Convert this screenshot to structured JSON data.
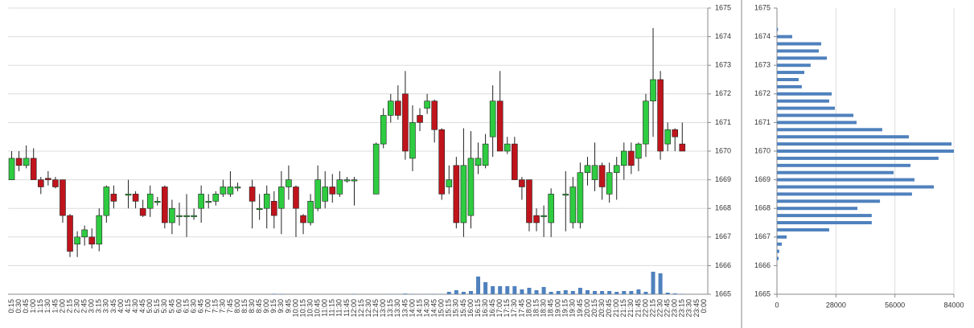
{
  "chart_data": [
    {
      "type": "candlestick",
      "categories": [
        "0:15",
        "0:30",
        "0:45",
        "1:00",
        "1:15",
        "1:30",
        "1:45",
        "2:00",
        "2:15",
        "2:30",
        "2:45",
        "3:00",
        "3:15",
        "3:30",
        "3:45",
        "4:00",
        "4:15",
        "4:30",
        "4:45",
        "5:00",
        "5:15",
        "5:30",
        "5:45",
        "6:00",
        "6:15",
        "6:30",
        "6:45",
        "7:00",
        "7:15",
        "7:30",
        "7:45",
        "8:00",
        "8:15",
        "8:30",
        "8:45",
        "9:00",
        "9:15",
        "9:30",
        "9:45",
        "10:00",
        "10:15",
        "10:30",
        "10:45",
        "11:00",
        "11:15",
        "11:30",
        "11:45",
        "12:00",
        "12:15",
        "12:30",
        "12:45",
        "13:00",
        "13:15",
        "13:30",
        "13:45",
        "14:00",
        "14:15",
        "14:30",
        "14:45",
        "15:00",
        "15:15",
        "15:30",
        "15:45",
        "16:00",
        "16:15",
        "16:30",
        "16:45",
        "17:00",
        "17:15",
        "17:30",
        "17:45",
        "18:00",
        "18:15",
        "18:30",
        "18:45",
        "19:00",
        "19:15",
        "19:30",
        "19:45",
        "20:00",
        "20:15",
        "20:30",
        "20:45",
        "21:00",
        "21:15",
        "21:30",
        "21:45",
        "22:00",
        "22:15",
        "22:30",
        "22:45",
        "23:00",
        "23:15",
        "23:30",
        "23:45",
        "0:00"
      ],
      "open": [
        1669,
        1669.75,
        1669.5,
        1669.75,
        1669,
        1669.05,
        1669,
        1669,
        1667.75,
        1666.75,
        1667,
        1667,
        1666.75,
        1667.75,
        1668.5,
        null,
        1668.5,
        1668.5,
        1668,
        1668,
        1668.25,
        1668.75,
        1667.5,
        1667.75,
        1667.75,
        1667.75,
        1668,
        1668.25,
        1668.25,
        1668.5,
        1668.5,
        1668.75,
        null,
        1668.75,
        1668,
        1668,
        1668.25,
        1668,
        1668.75,
        1668.75,
        1667.75,
        1667.5,
        1668,
        1668.25,
        1668.75,
        1668.5,
        1669,
        1669,
        null,
        null,
        1668.5,
        1670.25,
        1671.25,
        1671.75,
        1672,
        1669.75,
        1671.25,
        1671.5,
        1671.75,
        1670.75,
        1668.75,
        1669.5,
        1667.5,
        1667.75,
        1669.5,
        1669.5,
        1670.5,
        1671.75,
        1670,
        1670.25,
        1669,
        1669,
        1667.75,
        1667.75,
        1667.5,
        null,
        1668.5,
        1667.5,
        1667.5,
        1669.25,
        1669,
        1669.5,
        1668.5,
        1669.25,
        1669.5,
        1670,
        1669.75,
        1670.25,
        1671.75,
        1672.5,
        1670.25,
        1670.75,
        1670.25,
        null,
        null,
        null
      ],
      "high": [
        1670,
        1670,
        1670.2,
        1670.1,
        1669.1,
        1669.3,
        1669.1,
        1669,
        1667.8,
        1667.2,
        1667.4,
        1667.3,
        1668,
        1668.8,
        1668.8,
        null,
        1669,
        1668.6,
        1668.3,
        1668.8,
        1668.4,
        1668.8,
        1668.3,
        1668.2,
        1668.5,
        1668,
        1668.8,
        1668.5,
        1668.6,
        1669,
        1669.3,
        1668.9,
        null,
        1669,
        1668.5,
        1668.8,
        1668.6,
        1669.3,
        1669.5,
        1668.8,
        1667.8,
        1668.5,
        1669.5,
        1669.3,
        1669.2,
        1669.3,
        1669.1,
        1669.1,
        null,
        null,
        1670.3,
        1671.5,
        1672,
        1672.3,
        1672.8,
        1671.6,
        1671.5,
        1672,
        1671.8,
        1670.8,
        1669.5,
        1669.8,
        1670.8,
        1670.7,
        1670.3,
        1670.6,
        1672.3,
        1672.8,
        1670.5,
        1670.5,
        1669.1,
        1669,
        1668,
        1668.1,
        1668.7,
        null,
        1669.3,
        1669.1,
        1669.6,
        1669.8,
        1670.3,
        1669.6,
        1669.6,
        1669.8,
        1670.3,
        1670.3,
        1670.3,
        1672,
        1674.3,
        1672.8,
        1671,
        1670.8,
        1671,
        null,
        null,
        null
      ],
      "low": [
        1669,
        1669.3,
        1669.4,
        1669,
        1668.5,
        1668.8,
        1668.7,
        1667.5,
        1666.3,
        1666.3,
        1666.7,
        1666.6,
        1666.5,
        1667.5,
        1668,
        null,
        1668,
        1668,
        1667.7,
        1667.7,
        1668.1,
        1667.3,
        1667.1,
        1667.4,
        1667,
        1667.6,
        1667.5,
        1668,
        1668.1,
        1668.4,
        1668.4,
        1668.6,
        null,
        1667.3,
        1667.6,
        1667.3,
        1667.3,
        1667.1,
        1668.3,
        1667,
        1667.1,
        1667.4,
        1667.9,
        1668,
        1668.2,
        1668.4,
        1668.9,
        1668.1,
        null,
        null,
        1668.5,
        1670.1,
        1671,
        1671.1,
        1669.7,
        1669.3,
        1670.7,
        1671.3,
        1670.3,
        1668.3,
        1668.5,
        1667.3,
        1667,
        1667.3,
        1669.2,
        1669.4,
        1669.8,
        1670,
        1669.9,
        1669,
        1668.3,
        1667.2,
        1667.2,
        1667,
        1667,
        null,
        1667.2,
        1667.3,
        1667.3,
        1668.8,
        1668.6,
        1668.3,
        1668.2,
        1668.3,
        1669,
        1669.2,
        1669.3,
        1669.8,
        1670.5,
        1669.7,
        1670,
        1670,
        1670,
        null,
        null,
        null
      ],
      "close": [
        1669.75,
        1669.5,
        1669.75,
        1669,
        1668.75,
        1669,
        1668.75,
        1667.75,
        1666.5,
        1667,
        1667.25,
        1666.75,
        1667.75,
        1668.75,
        1668.25,
        null,
        1668.5,
        1668.25,
        1667.75,
        1668.5,
        1668.25,
        1667.5,
        1668,
        1667.75,
        1667.75,
        1667.75,
        1668.5,
        1668.25,
        1668.5,
        1668.75,
        1668.75,
        1668.75,
        null,
        1668.25,
        1668,
        1668.5,
        1667.75,
        1668.75,
        1669,
        1668,
        1667.5,
        1668.25,
        1669,
        1668.75,
        1668.5,
        1669,
        1669,
        1669,
        null,
        null,
        1670.25,
        1671.25,
        1671.75,
        1671.25,
        1670,
        1671,
        1671,
        1671.75,
        1670.75,
        1668.5,
        1669,
        1667.5,
        1669.5,
        1669.75,
        1669.75,
        1670.25,
        1671.75,
        1670,
        1670.25,
        1669,
        1668.75,
        1667.5,
        1667.5,
        1667.75,
        1668.5,
        null,
        1668.5,
        1668.75,
        1669.25,
        1669.5,
        1669.5,
        1668.75,
        1669.25,
        1669.5,
        1670,
        1669.5,
        1670.25,
        1671.75,
        1672.5,
        1670,
        1670.75,
        1670.5,
        1670,
        null,
        null,
        null
      ],
      "volume": [
        100,
        100,
        100,
        100,
        100,
        100,
        100,
        100,
        100,
        100,
        100,
        100,
        100,
        100,
        100,
        null,
        100,
        100,
        100,
        100,
        100,
        100,
        100,
        100,
        100,
        100,
        100,
        100,
        100,
        100,
        100,
        100,
        null,
        100,
        100,
        100,
        600,
        500,
        100,
        100,
        100,
        100,
        100,
        100,
        100,
        100,
        100,
        400,
        null,
        null,
        100,
        100,
        300,
        300,
        800,
        500,
        200,
        300,
        400,
        300,
        3000,
        5000,
        3000,
        4000,
        22000,
        15000,
        10000,
        10000,
        10000,
        10000,
        6000,
        8000,
        5000,
        9000,
        3000,
        4000,
        5000,
        4000,
        8000,
        5000,
        4000,
        4000,
        4000,
        3000,
        4000,
        4000,
        6000,
        3000,
        28000,
        26000,
        2000,
        1000,
        500,
        null,
        null,
        null
      ],
      "up_color": "#2ecc40",
      "down_color": "#c0141c",
      "volume_color": "#4f81bd",
      "ylim": [
        1665,
        1675
      ],
      "yticks": [
        1665,
        1666,
        1667,
        1668,
        1669,
        1670,
        1671,
        1672,
        1673,
        1674,
        1675
      ],
      "grid": true
    },
    {
      "type": "hbar",
      "y": [
        1666.25,
        1666.5,
        1666.75,
        1667,
        1667.25,
        1667.5,
        1667.75,
        1668,
        1668.25,
        1668.5,
        1668.75,
        1669,
        1669.25,
        1669.5,
        1669.75,
        1670,
        1670.25,
        1670.5,
        1670.75,
        1671,
        1671.25,
        1671.5,
        1671.75,
        1672,
        1672.25,
        1672.5,
        1672.75,
        1673,
        1673.25,
        1673.5,
        1673.75,
        1674,
        1674.25
      ],
      "values": [
        800,
        1100,
        2300,
        4600,
        24800,
        45000,
        45000,
        38200,
        48900,
        64100,
        74500,
        65300,
        55400,
        63400,
        76700,
        84000,
        82900,
        62600,
        50000,
        37800,
        36300,
        27500,
        24800,
        26000,
        11800,
        10300,
        13000,
        16000,
        23700,
        19850,
        21000,
        7250,
        500
      ],
      "color": "#4f81bd",
      "xlim": [
        0,
        84000
      ],
      "xticks": [
        0,
        28000,
        56000,
        84000
      ],
      "ylim": [
        1665,
        1675
      ],
      "yticks": [
        1665,
        1666,
        1667,
        1668,
        1669,
        1670,
        1671,
        1672,
        1673,
        1674,
        1675
      ],
      "grid": true
    }
  ]
}
